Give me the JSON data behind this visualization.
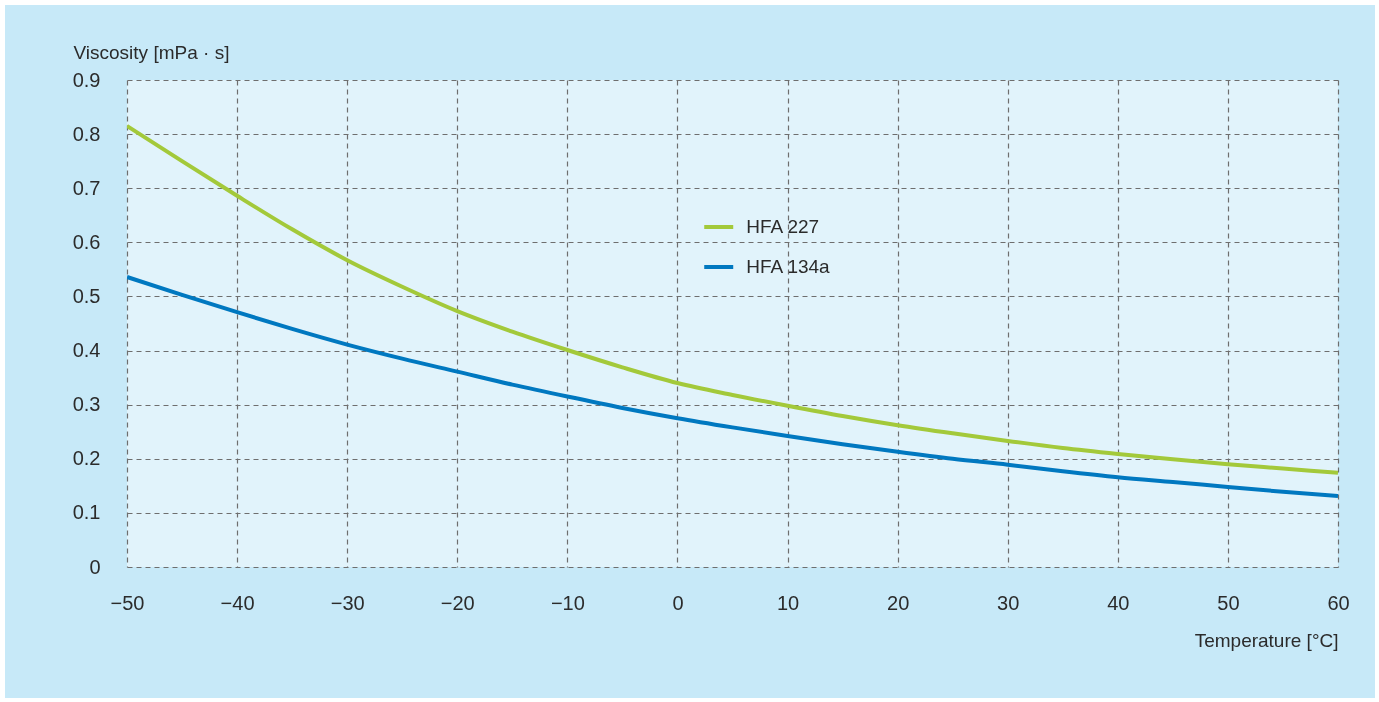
{
  "chart_data": {
    "type": "line",
    "xlabel": "Temperature [°C]",
    "ylabel": "Viscosity [mPa · s]",
    "x": [
      -50,
      -45,
      -40,
      -35,
      -30,
      -25,
      -20,
      -15,
      -10,
      -5,
      0,
      5,
      10,
      15,
      20,
      25,
      30,
      35,
      40,
      45,
      50,
      55,
      60
    ],
    "series": [
      {
        "name": "HFA 227",
        "color": "#a3c93a",
        "values": [
          0.815,
          0.75,
          0.686,
          0.624,
          0.567,
          0.518,
          0.473,
          0.435,
          0.401,
          0.369,
          0.34,
          0.318,
          0.298,
          0.279,
          0.262,
          0.247,
          0.233,
          0.22,
          0.209,
          0.199,
          0.19,
          0.182,
          0.174
        ]
      },
      {
        "name": "HFA 134a",
        "color": "#0078c0",
        "values": [
          0.536,
          0.503,
          0.471,
          0.44,
          0.411,
          0.385,
          0.361,
          0.337,
          0.315,
          0.294,
          0.275,
          0.258,
          0.242,
          0.227,
          0.213,
          0.2,
          0.189,
          0.177,
          0.166,
          0.157,
          0.148,
          0.139,
          0.131
        ]
      }
    ],
    "xlim": [
      -50,
      60
    ],
    "ylim": [
      0,
      0.9
    ],
    "xticks": [
      -50,
      -40,
      -30,
      -20,
      -10,
      0,
      10,
      20,
      30,
      40,
      50,
      60
    ],
    "yticks": [
      0,
      0.1,
      0.2,
      0.3,
      0.4,
      0.5,
      0.6,
      0.7,
      0.8,
      0.9
    ],
    "grid": true,
    "legend": "top"
  }
}
